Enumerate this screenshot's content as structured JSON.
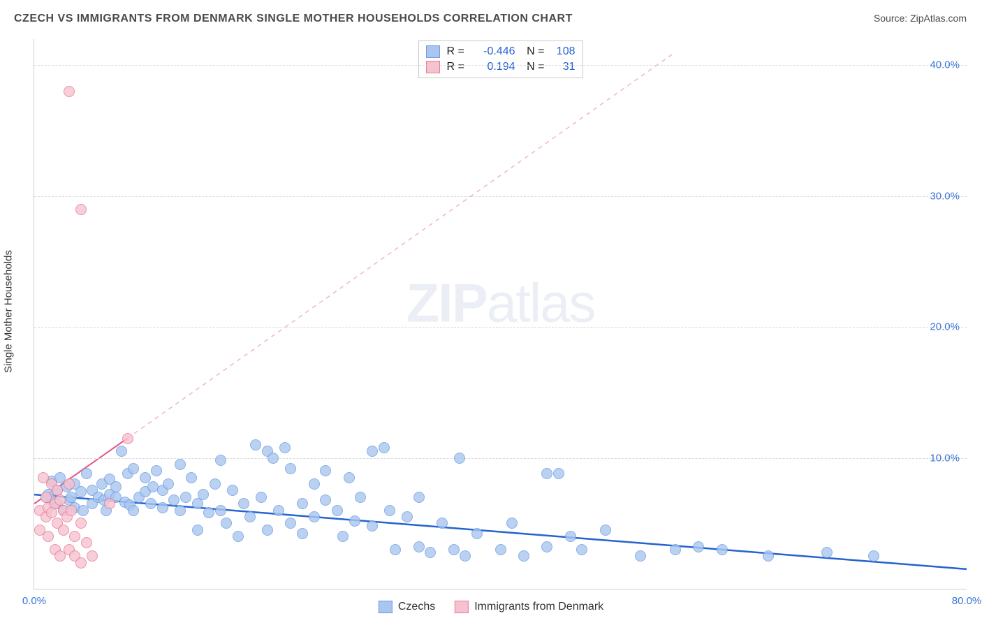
{
  "title": "CZECH VS IMMIGRANTS FROM DENMARK SINGLE MOTHER HOUSEHOLDS CORRELATION CHART",
  "source": "Source: ZipAtlas.com",
  "watermark": {
    "bold": "ZIP",
    "light": "atlas"
  },
  "y_axis_title": "Single Mother Households",
  "chart": {
    "type": "scatter",
    "xlim": [
      0,
      80
    ],
    "ylim": [
      0,
      42
    ],
    "x_ticks": [
      {
        "value": 0,
        "label": "0.0%",
        "color": "#3874d6"
      },
      {
        "value": 80,
        "label": "80.0%",
        "color": "#3874d6"
      }
    ],
    "y_ticks": [
      {
        "value": 10,
        "label": "10.0%",
        "color": "#3874d6"
      },
      {
        "value": 20,
        "label": "20.0%",
        "color": "#3874d6"
      },
      {
        "value": 30,
        "label": "30.0%",
        "color": "#3874d6"
      },
      {
        "value": 40,
        "label": "40.0%",
        "color": "#3874d6"
      }
    ],
    "grid_color": "#d9d9d9",
    "background_color": "#ffffff",
    "marker_radius": 8,
    "marker_opacity": 0.35,
    "series": [
      {
        "id": "czechs",
        "label": "Czechs",
        "color_fill": "#a9c6f0",
        "color_stroke": "#6b9de0",
        "stats": {
          "R": "-0.446",
          "N": "108"
        },
        "trend": {
          "x1": 0,
          "y1": 7.2,
          "x2": 80,
          "y2": 1.5,
          "color": "#2463d0",
          "width": 2.5,
          "dashed_extension": null
        },
        "points": [
          [
            1.0,
            7.0
          ],
          [
            1.2,
            7.2
          ],
          [
            1.5,
            6.8
          ],
          [
            1.5,
            8.2
          ],
          [
            2.0,
            6.5
          ],
          [
            2.0,
            7.5
          ],
          [
            2.2,
            8.5
          ],
          [
            2.5,
            6.0
          ],
          [
            2.8,
            7.8
          ],
          [
            3.0,
            6.8
          ],
          [
            3.2,
            7.0
          ],
          [
            3.5,
            8.0
          ],
          [
            3.5,
            6.2
          ],
          [
            4.0,
            7.4
          ],
          [
            4.2,
            6.0
          ],
          [
            4.5,
            8.8
          ],
          [
            5.0,
            6.5
          ],
          [
            5.0,
            7.5
          ],
          [
            5.5,
            7.0
          ],
          [
            5.8,
            8.0
          ],
          [
            6.0,
            6.8
          ],
          [
            6.2,
            6.0
          ],
          [
            6.5,
            8.4
          ],
          [
            6.5,
            7.2
          ],
          [
            7.0,
            7.0
          ],
          [
            7.0,
            7.8
          ],
          [
            7.5,
            10.5
          ],
          [
            7.8,
            6.6
          ],
          [
            8.0,
            8.8
          ],
          [
            8.2,
            6.4
          ],
          [
            8.5,
            6.0
          ],
          [
            8.5,
            9.2
          ],
          [
            9.0,
            7.0
          ],
          [
            9.5,
            8.5
          ],
          [
            9.5,
            7.4
          ],
          [
            10.0,
            6.5
          ],
          [
            10.2,
            7.8
          ],
          [
            10.5,
            9.0
          ],
          [
            11.0,
            6.2
          ],
          [
            11.0,
            7.5
          ],
          [
            11.5,
            8.0
          ],
          [
            12.0,
            6.8
          ],
          [
            12.5,
            9.5
          ],
          [
            12.5,
            6.0
          ],
          [
            13.0,
            7.0
          ],
          [
            13.5,
            8.5
          ],
          [
            14.0,
            4.5
          ],
          [
            14.0,
            6.5
          ],
          [
            14.5,
            7.2
          ],
          [
            15.0,
            5.8
          ],
          [
            15.5,
            8.0
          ],
          [
            16.0,
            9.8
          ],
          [
            16.0,
            6.0
          ],
          [
            16.5,
            5.0
          ],
          [
            17.0,
            7.5
          ],
          [
            17.5,
            4.0
          ],
          [
            18.0,
            6.5
          ],
          [
            18.5,
            5.5
          ],
          [
            19.0,
            11.0
          ],
          [
            19.5,
            7.0
          ],
          [
            20.0,
            10.5
          ],
          [
            20.0,
            4.5
          ],
          [
            20.5,
            10.0
          ],
          [
            21.0,
            6.0
          ],
          [
            21.5,
            10.8
          ],
          [
            22.0,
            9.2
          ],
          [
            22.0,
            5.0
          ],
          [
            23.0,
            6.5
          ],
          [
            23.0,
            4.2
          ],
          [
            24.0,
            8.0
          ],
          [
            24.0,
            5.5
          ],
          [
            25.0,
            6.8
          ],
          [
            25.0,
            9.0
          ],
          [
            26.0,
            6.0
          ],
          [
            26.5,
            4.0
          ],
          [
            27.0,
            8.5
          ],
          [
            27.5,
            5.2
          ],
          [
            28.0,
            7.0
          ],
          [
            29.0,
            10.5
          ],
          [
            29.0,
            4.8
          ],
          [
            30.0,
            10.8
          ],
          [
            30.5,
            6.0
          ],
          [
            31.0,
            3.0
          ],
          [
            32.0,
            5.5
          ],
          [
            33.0,
            7.0
          ],
          [
            33.0,
            3.2
          ],
          [
            34.0,
            2.8
          ],
          [
            35.0,
            5.0
          ],
          [
            36.0,
            3.0
          ],
          [
            36.5,
            10.0
          ],
          [
            37.0,
            2.5
          ],
          [
            38.0,
            4.2
          ],
          [
            40.0,
            3.0
          ],
          [
            41.0,
            5.0
          ],
          [
            42.0,
            2.5
          ],
          [
            44.0,
            8.8
          ],
          [
            44.0,
            3.2
          ],
          [
            45.0,
            8.8
          ],
          [
            46.0,
            4.0
          ],
          [
            47.0,
            3.0
          ],
          [
            49.0,
            4.5
          ],
          [
            52.0,
            2.5
          ],
          [
            55.0,
            3.0
          ],
          [
            57.0,
            3.2
          ],
          [
            59.0,
            3.0
          ],
          [
            63.0,
            2.5
          ],
          [
            68.0,
            2.8
          ],
          [
            72.0,
            2.5
          ]
        ]
      },
      {
        "id": "denmark",
        "label": "Immigrants from Denmark",
        "color_fill": "#f7c2cf",
        "color_stroke": "#e77a97",
        "stats": {
          "R": "0.194",
          "N": "31"
        },
        "trend": {
          "x1": 0,
          "y1": 6.5,
          "x2": 8,
          "y2": 11.5,
          "color": "#e55280",
          "width": 2.0,
          "dashed_extension": {
            "x2": 55,
            "y2": 41,
            "color": "#f1b6c6"
          }
        },
        "points": [
          [
            0.5,
            6.0
          ],
          [
            0.5,
            4.5
          ],
          [
            0.8,
            8.5
          ],
          [
            1.0,
            5.5
          ],
          [
            1.0,
            7.0
          ],
          [
            1.2,
            6.2
          ],
          [
            1.2,
            4.0
          ],
          [
            1.5,
            5.8
          ],
          [
            1.5,
            8.0
          ],
          [
            1.8,
            6.5
          ],
          [
            1.8,
            3.0
          ],
          [
            2.0,
            7.5
          ],
          [
            2.0,
            5.0
          ],
          [
            2.2,
            6.8
          ],
          [
            2.2,
            2.5
          ],
          [
            2.5,
            4.5
          ],
          [
            2.5,
            6.0
          ],
          [
            2.8,
            5.5
          ],
          [
            3.0,
            3.0
          ],
          [
            3.0,
            8.0
          ],
          [
            3.2,
            6.0
          ],
          [
            3.5,
            4.0
          ],
          [
            3.5,
            2.5
          ],
          [
            4.0,
            5.0
          ],
          [
            4.0,
            2.0
          ],
          [
            4.5,
            3.5
          ],
          [
            5.0,
            2.5
          ],
          [
            6.5,
            6.5
          ],
          [
            8.0,
            11.5
          ],
          [
            3.0,
            38.0
          ],
          [
            4.0,
            29.0
          ]
        ]
      }
    ]
  },
  "stats_box": {
    "rows": [
      {
        "swatch_fill": "#a9c6f0",
        "swatch_stroke": "#6b9de0",
        "r_label": "R =",
        "r_value": "-0.446",
        "r_color": "#2463d0",
        "n_label": "N =",
        "n_value": "108",
        "n_color": "#2463d0"
      },
      {
        "swatch_fill": "#f7c2cf",
        "swatch_stroke": "#e77a97",
        "r_label": "R =",
        "r_value": "0.194",
        "r_color": "#2463d0",
        "n_label": "N =",
        "n_value": "31",
        "n_color": "#2463d0"
      }
    ]
  },
  "bottom_legend": [
    {
      "swatch_fill": "#a9c6f0",
      "swatch_stroke": "#6b9de0",
      "label": "Czechs"
    },
    {
      "swatch_fill": "#f7c2cf",
      "swatch_stroke": "#e77a97",
      "label": "Immigrants from Denmark"
    }
  ]
}
